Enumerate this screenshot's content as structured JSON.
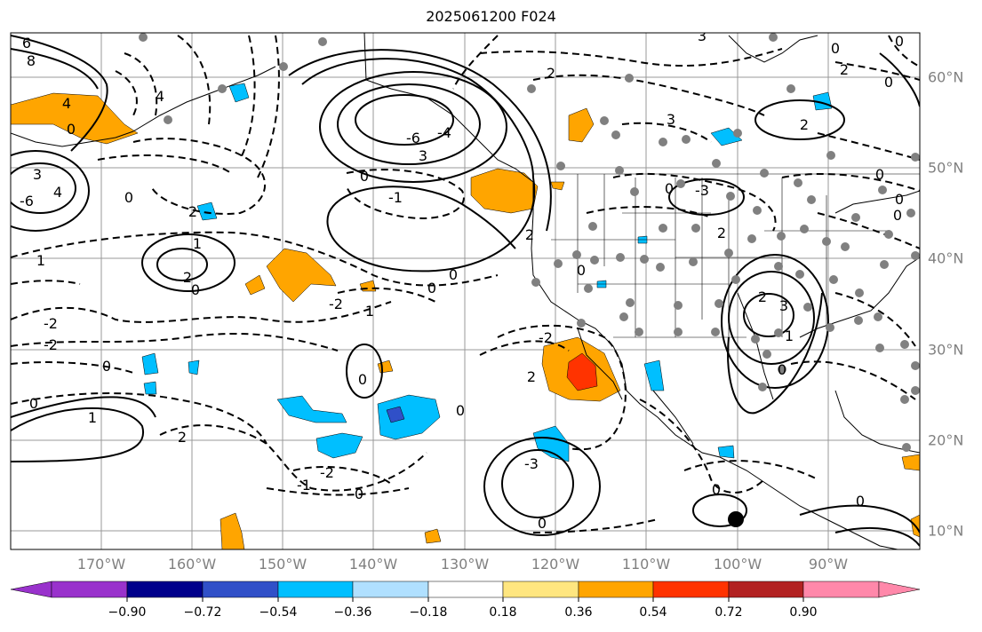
{
  "title": "2025061200 F024",
  "lon_labels": [
    "170°W",
    "160°W",
    "150°W",
    "140°W",
    "130°W",
    "120°W",
    "110°W",
    "100°W",
    "90°W"
  ],
  "lat_labels": [
    "60°N",
    "50°N",
    "40°N",
    "30°N",
    "20°N",
    "10°N"
  ],
  "colorbar": {
    "ticks": [
      "−0.90",
      "−0.72",
      "−0.54",
      "−0.36",
      "−0.18",
      "0.18",
      "0.36",
      "0.54",
      "0.72",
      "0.90"
    ],
    "colors": [
      "#9932cc",
      "#00008b",
      "#3050c8",
      "#00bfff",
      "#b0e0ff",
      "#ffffff",
      "#ffe680",
      "#ffa500",
      "#ff3300",
      "#b22222",
      "#ff88aa"
    ]
  },
  "contour_labels": [
    "6",
    "8",
    "3",
    "4",
    "-1",
    "-2",
    "-3",
    "0",
    "1",
    "2",
    "-4",
    "-6"
  ],
  "field_colors": {
    "positive": "#ffa500",
    "strong_positive": "#ff3300",
    "negative": "#00bfff",
    "strong_negative": "#3050c8"
  }
}
